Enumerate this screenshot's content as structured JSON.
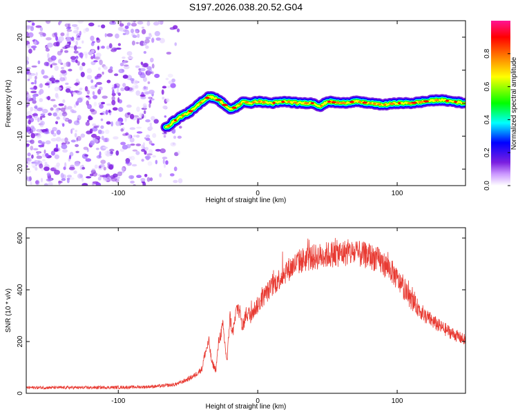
{
  "title": "S197.2026.038.20.52.G04",
  "colors": {
    "snr_line": "#e83a32",
    "noise": "#7b1fe0",
    "axis": "#000000",
    "background": "#ffffff"
  },
  "chart_data": [
    {
      "type": "heatmap",
      "name": "spectrogram",
      "xlabel": "Height of straight line (km)",
      "ylabel": "Frequency (Hz)",
      "xlim": [
        -166,
        149
      ],
      "ylim": [
        -25,
        25
      ],
      "xticks": [
        -100,
        0,
        100
      ],
      "xtick_labels": [
        "-100",
        "0",
        "100"
      ],
      "yticks": [
        -20,
        -10,
        0,
        10,
        20
      ],
      "ytick_labels": [
        "-20",
        "-10",
        "0",
        "10",
        "20"
      ],
      "signal_ridge": {
        "x": [
          -66,
          -60,
          -55,
          -50,
          -45,
          -40,
          -35,
          -30,
          -25,
          -20,
          -15,
          -10,
          -5,
          0,
          10,
          20,
          30,
          40,
          45,
          50,
          60,
          70,
          80,
          90,
          100,
          110,
          120,
          130,
          140,
          149
        ],
        "frequency": [
          -7.5,
          -5.5,
          -4,
          -3,
          -1.5,
          0.5,
          2,
          1.5,
          0,
          -2,
          -1,
          0.5,
          0,
          0.5,
          0,
          0.5,
          0,
          0,
          -1,
          0.5,
          0,
          0.5,
          0,
          -0.5,
          0,
          0,
          0.5,
          1,
          0.5,
          0
        ]
      },
      "noise_region_x": [
        -166,
        -55
      ],
      "colorbar": {
        "label": "Normalized spectral amplitude",
        "range": [
          0,
          1
        ],
        "ticks": [
          0.0,
          0.2,
          0.4,
          0.6,
          0.8
        ],
        "tick_labels": [
          "0.0",
          "0.2",
          "0.4",
          "0.6",
          "0.8"
        ],
        "colormap": [
          "#ffffff",
          "#cc99ff",
          "#7b1fe0",
          "#0000ff",
          "#00ffff",
          "#00ff00",
          "#ffff00",
          "#ff8000",
          "#ff0000",
          "#ff1493"
        ]
      }
    },
    {
      "type": "line",
      "name": "snr",
      "xlabel": "Height of straight line (km)",
      "ylabel": "SNR (10 * v/v)",
      "xlim": [
        -166,
        149
      ],
      "ylim": [
        0,
        640
      ],
      "xticks": [
        -100,
        0,
        100
      ],
      "xtick_labels": [
        "-100",
        "0",
        "100"
      ],
      "yticks": [
        0,
        200,
        400,
        600
      ],
      "ytick_labels": [
        "0",
        "200",
        "400",
        "600"
      ],
      "series": [
        {
          "name": "SNR",
          "x": [
            -166,
            -140,
            -120,
            -100,
            -80,
            -70,
            -60,
            -55,
            -50,
            -45,
            -40,
            -38,
            -35,
            -33,
            -30,
            -28,
            -25,
            -22,
            -20,
            -18,
            -15,
            -13,
            -11,
            -9,
            -7,
            -5,
            -2,
            0,
            5,
            10,
            15,
            20,
            25,
            30,
            35,
            40,
            45,
            50,
            55,
            60,
            65,
            70,
            75,
            80,
            85,
            90,
            95,
            100,
            105,
            110,
            115,
            120,
            125,
            130,
            135,
            140,
            145,
            149
          ],
          "y": [
            22,
            22,
            22,
            23,
            25,
            28,
            33,
            42,
            55,
            70,
            95,
            150,
            200,
            120,
            90,
            200,
            260,
            120,
            300,
            230,
            330,
            320,
            250,
            300,
            310,
            300,
            330,
            340,
            380,
            410,
            440,
            470,
            490,
            510,
            520,
            525,
            530,
            535,
            540,
            540,
            545,
            540,
            535,
            530,
            520,
            500,
            480,
            440,
            400,
            360,
            330,
            300,
            280,
            260,
            245,
            230,
            215,
            205
          ]
        }
      ]
    }
  ]
}
